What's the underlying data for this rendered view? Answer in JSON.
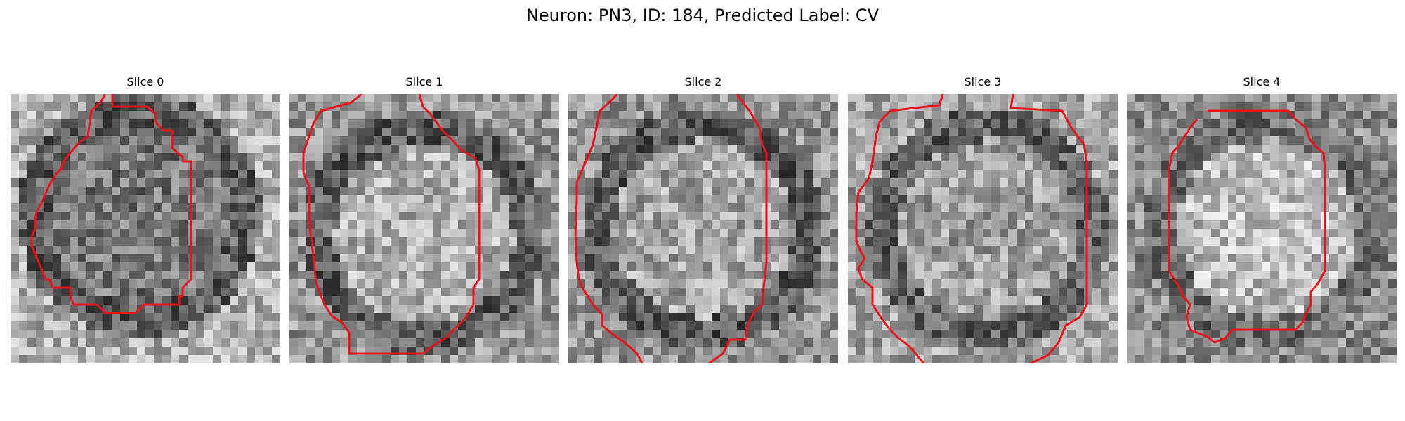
{
  "figure": {
    "title": "Neuron: PN3, ID: 184, Predicted Label: CV"
  },
  "panels": [
    {
      "title": "Slice 0"
    },
    {
      "title": "Slice 1"
    },
    {
      "title": "Slice 2"
    },
    {
      "title": "Slice 3"
    },
    {
      "title": "Slice 4"
    }
  ],
  "colors": {
    "contour": "#e8141a",
    "background": "#ffffff"
  },
  "image_style": "grayscale pixel grid with red segmentation contour"
}
